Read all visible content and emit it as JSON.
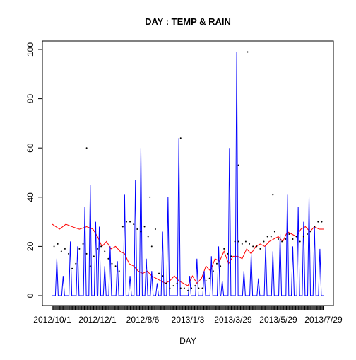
{
  "chart_data": {
    "type": "line",
    "title": "DAY : TEMP & RAIN",
    "xlabel": "DAY",
    "ylabel": "",
    "ylim": [
      0,
      100
    ],
    "yticks": [
      0,
      20,
      40,
      60,
      80,
      100
    ],
    "xlim": [
      0,
      300
    ],
    "xtick_labels": [
      "2012/10/1",
      "2012/12/1",
      "2012/8/6",
      "2013/1/3",
      "2013/3/29",
      "2013/5/29",
      "2013/7/29"
    ],
    "grid": false,
    "legend": "none",
    "colors": {
      "temp": "#ff0000",
      "rain": "#0000ff",
      "points": "#000000"
    },
    "series": [
      {
        "style": "line",
        "color": "#ff0000",
        "x": [
          0,
          8,
          15,
          22,
          30,
          38,
          45,
          50,
          55,
          60,
          65,
          70,
          75,
          80,
          85,
          90,
          95,
          100,
          105,
          110,
          115,
          120,
          125,
          130,
          135,
          140,
          145,
          150,
          155,
          160,
          165,
          170,
          175,
          180,
          185,
          190,
          195,
          200,
          205,
          210,
          215,
          220,
          225,
          230,
          235,
          240,
          245,
          250,
          255,
          260,
          265,
          270,
          275,
          280,
          285,
          290,
          295,
          300
        ],
        "y": [
          29,
          27,
          29,
          28,
          27,
          28,
          27,
          24,
          20,
          22,
          19,
          20,
          18,
          17,
          13,
          12,
          10,
          9,
          10,
          8,
          7,
          6,
          5,
          6,
          8,
          6,
          5,
          4,
          8,
          5,
          7,
          12,
          10,
          15,
          14,
          18,
          13,
          16,
          16,
          15,
          19,
          17,
          20,
          21,
          20,
          22,
          23,
          24,
          22,
          26,
          25,
          24,
          27,
          28,
          26,
          28,
          27,
          27
        ]
      },
      {
        "style": "spikes",
        "color": "#0000ff",
        "x": [
          5,
          12,
          20,
          28,
          36,
          42,
          48,
          52,
          58,
          64,
          72,
          80,
          86,
          92,
          98,
          104,
          110,
          116,
          122,
          128,
          140,
          152,
          160,
          168,
          176,
          184,
          188,
          196,
          204,
          212,
          220,
          228,
          236,
          244,
          252,
          260,
          266,
          272,
          278,
          284,
          290,
          296
        ],
        "y": [
          15,
          8,
          22,
          20,
          36,
          45,
          30,
          28,
          12,
          20,
          14,
          41,
          8,
          47,
          60,
          15,
          10,
          5,
          26,
          40,
          64,
          8,
          15,
          10,
          16,
          20,
          6,
          60,
          99,
          10,
          17,
          7,
          20,
          18,
          25,
          41,
          20,
          36,
          30,
          40,
          28,
          19
        ]
      },
      {
        "style": "points",
        "color": "#000000",
        "x": [
          2,
          6,
          10,
          14,
          18,
          22,
          26,
          30,
          34,
          38,
          42,
          46,
          50,
          54,
          58,
          62,
          66,
          70,
          74,
          78,
          82,
          86,
          90,
          94,
          98,
          102,
          106,
          110,
          114,
          118,
          122,
          126,
          130,
          134,
          138,
          142,
          146,
          150,
          154,
          158,
          162,
          166,
          170,
          174,
          178,
          182,
          186,
          190,
          194,
          198,
          202,
          206,
          210,
          214,
          218,
          222,
          226,
          230,
          234,
          238,
          242,
          246,
          250,
          254,
          258,
          262,
          266,
          270,
          274,
          278,
          282,
          286,
          290,
          294,
          298,
          38,
          108,
          142,
          206,
          216,
          244
        ],
        "y": [
          20,
          21,
          18,
          19,
          17,
          11,
          13,
          19,
          21,
          17,
          12,
          16,
          19,
          20,
          18,
          15,
          13,
          12,
          10,
          28,
          30,
          30,
          29,
          27,
          26,
          28,
          24,
          20,
          27,
          9,
          8,
          5,
          3,
          4,
          5,
          3,
          3,
          2,
          3,
          4,
          3,
          3,
          6,
          7,
          10,
          13,
          12,
          19,
          17,
          16,
          22,
          22,
          21,
          22,
          21,
          20,
          20,
          19,
          22,
          24,
          24,
          26,
          23,
          22,
          23,
          25,
          23,
          24,
          22,
          24,
          25,
          26,
          28,
          30,
          30,
          60,
          40,
          64,
          53,
          99,
          41
        ]
      }
    ]
  }
}
